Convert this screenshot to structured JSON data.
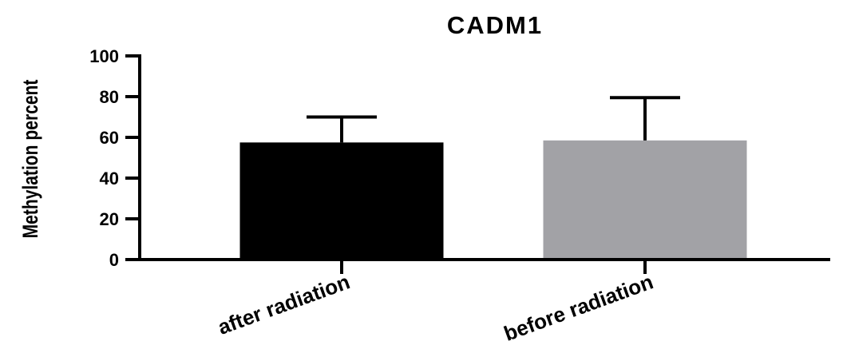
{
  "chart_data": {
    "type": "bar",
    "title": "CADM1",
    "xlabel": "",
    "ylabel": "Methylation percent",
    "ylim": [
      0,
      100
    ],
    "yticks": [
      0,
      20,
      40,
      60,
      80,
      100
    ],
    "categories": [
      "after radiation",
      "before radiation"
    ],
    "values": [
      57.5,
      58.5
    ],
    "error_upper": [
      70,
      79.5
    ],
    "bar_colors": [
      "#000000",
      "#a2a2a6"
    ],
    "grid": false,
    "legend": "none"
  }
}
